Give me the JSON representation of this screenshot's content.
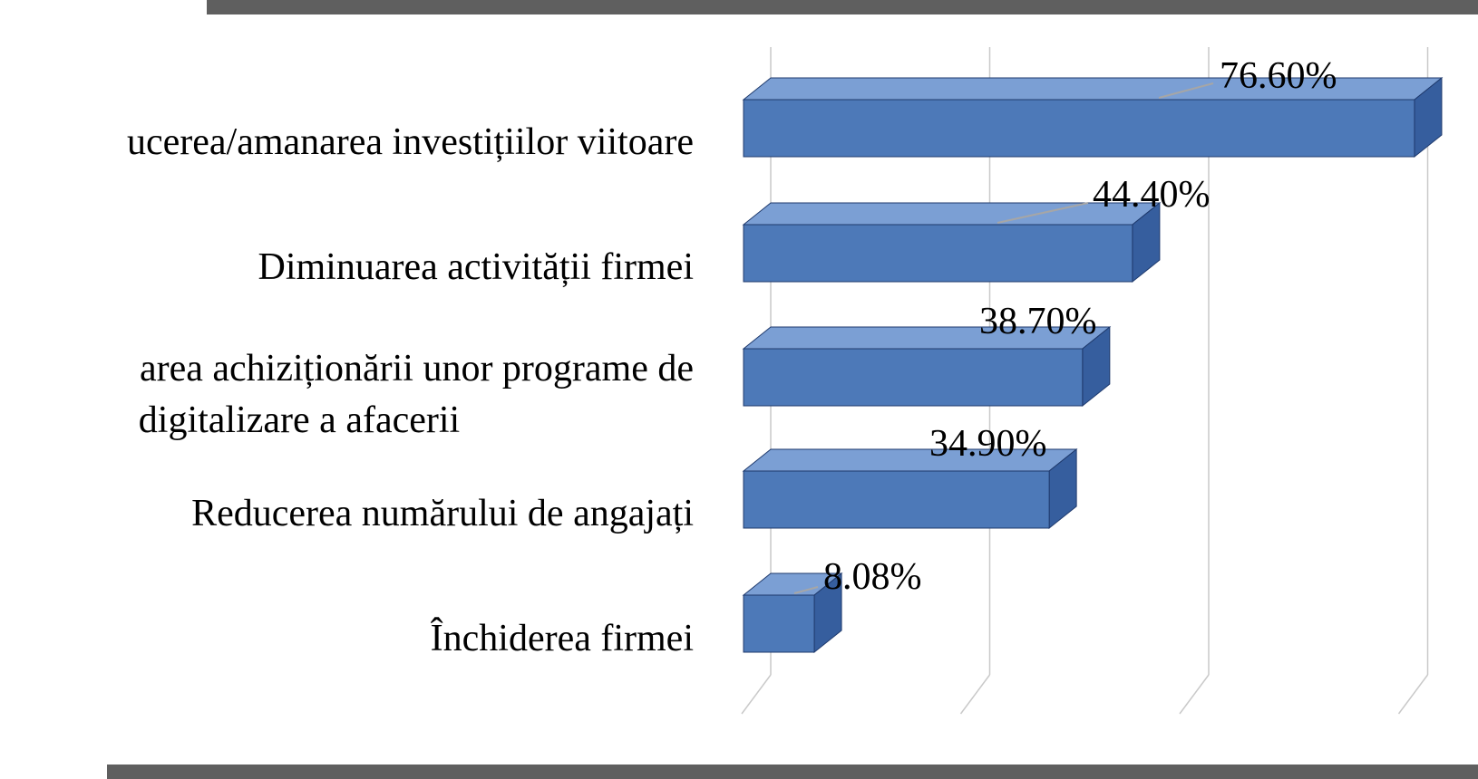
{
  "page": {
    "background_color": "#ffffff",
    "top_strip_color": "#5f5f5f",
    "bottom_strip_color": "#5f5f5f"
  },
  "chart_data": {
    "type": "bar",
    "orientation": "horizontal",
    "style": "3d",
    "title": "",
    "xlabel": "",
    "ylabel": "",
    "legend": false,
    "grid": true,
    "xlim": [
      0,
      80
    ],
    "gridlines_pct": [
      0,
      25,
      50,
      75
    ],
    "categories": [
      "ucerea/amanarea investițiilor viitoare",
      "Diminuarea activității firmei",
      "area achiziționării unor programe de\ndigitalizare a afacerii",
      "Reducerea numărului de angajați",
      "Închiderea firmei"
    ],
    "values": [
      76.6,
      44.4,
      38.7,
      34.9,
      8.08
    ],
    "value_labels": [
      "76.60%",
      "44.40%",
      "38.70%",
      "34.90%",
      "8.08%"
    ],
    "colors": {
      "bar_front": "#4d79b8",
      "bar_top": "#7b9fd4",
      "bar_side": "#365e9e",
      "bar_stroke": "#1f3a6d",
      "gridline": "#c9c9c9",
      "leader_line": "#a6a6a6",
      "text": "#000000"
    }
  }
}
